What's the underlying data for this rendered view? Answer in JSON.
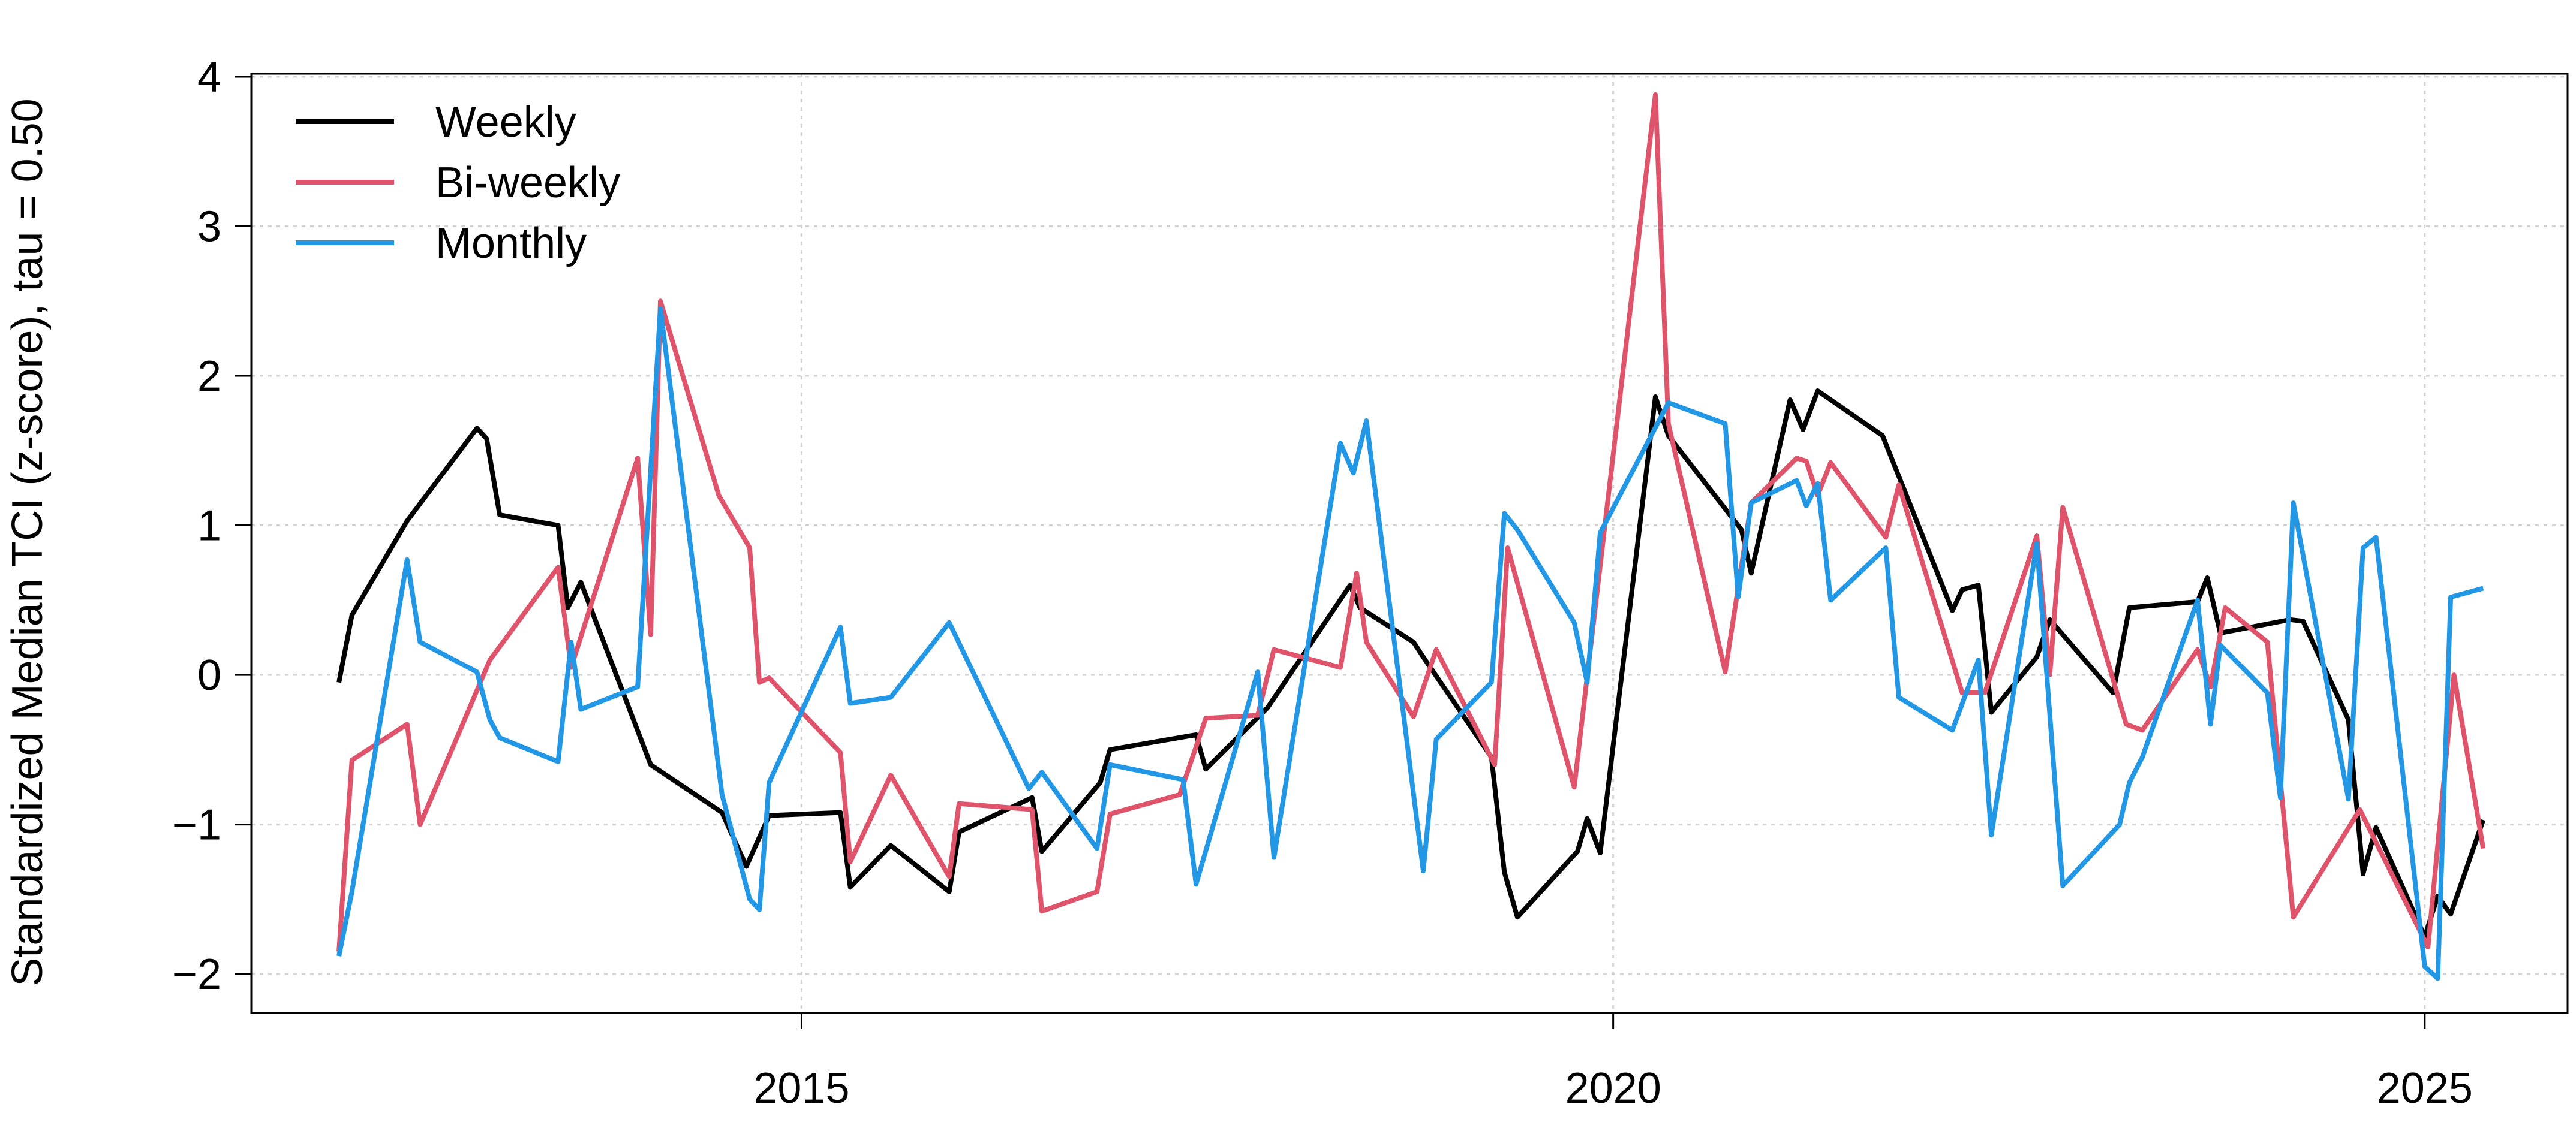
{
  "chart_data": {
    "type": "line",
    "ylabel": "Standardized Median TCI (z-score), tau = 0.50",
    "xlim": [
      2011.61,
      2025.88
    ],
    "ylim": [
      -2.26,
      4.02
    ],
    "xticks": [
      2015,
      2020,
      2025
    ],
    "yticks": [
      {
        "value": -2,
        "label": "−2"
      },
      {
        "value": -1,
        "label": "−1"
      },
      0,
      1,
      2,
      3,
      4
    ],
    "grid": true,
    "legend": "top-left",
    "series": [
      {
        "name": "Weekly",
        "color": "#000000",
        "x": [
          2012.15,
          2012.23,
          2012.57,
          2013.0,
          2013.06,
          2013.14,
          2013.5,
          2013.56,
          2013.64,
          2014.07,
          2014.51,
          2014.66,
          2014.8,
          2015.24,
          2015.3,
          2015.55,
          2015.91,
          2015.97,
          2016.42,
          2016.48,
          2016.84,
          2016.9,
          2017.43,
          2017.49,
          2017.87,
          2018.38,
          2018.44,
          2018.77,
          2018.83,
          2019.25,
          2019.33,
          2019.41,
          2019.78,
          2019.84,
          2019.92,
          2020.26,
          2020.34,
          2020.79,
          2020.85,
          2021.09,
          2021.17,
          2021.26,
          2021.66,
          2022.09,
          2022.15,
          2022.25,
          2022.33,
          2022.61,
          2022.69,
          2023.08,
          2023.18,
          2023.6,
          2023.66,
          2023.74,
          2024.17,
          2024.25,
          2024.53,
          2024.62,
          2024.7,
          2025.0,
          2025.08,
          2025.16,
          2025.36
        ],
        "values": [
          -0.05,
          0.4,
          1.03,
          1.65,
          1.58,
          1.07,
          1.0,
          0.45,
          0.62,
          -0.6,
          -0.92,
          -1.28,
          -0.94,
          -0.92,
          -1.42,
          -1.14,
          -1.45,
          -1.05,
          -0.82,
          -1.18,
          -0.72,
          -0.5,
          -0.4,
          -0.63,
          -0.22,
          0.6,
          0.45,
          0.22,
          0.12,
          -0.55,
          -1.32,
          -1.62,
          -1.18,
          -0.96,
          -1.19,
          1.86,
          1.6,
          0.97,
          0.68,
          1.84,
          1.64,
          1.9,
          1.6,
          0.43,
          0.57,
          0.6,
          -0.25,
          0.12,
          0.37,
          -0.12,
          0.45,
          0.49,
          0.65,
          0.28,
          0.37,
          0.36,
          -0.3,
          -1.33,
          -1.02,
          -1.75,
          -1.48,
          -1.6,
          -0.97
        ]
      },
      {
        "name": "Bi-weekly",
        "color": "#df536b",
        "x": [
          2012.15,
          2012.23,
          2012.57,
          2012.65,
          2013.08,
          2013.5,
          2013.58,
          2013.99,
          2014.07,
          2014.13,
          2014.49,
          2014.68,
          2014.74,
          2014.8,
          2015.24,
          2015.3,
          2015.55,
          2015.91,
          2015.97,
          2016.42,
          2016.48,
          2016.82,
          2016.9,
          2017.33,
          2017.49,
          2017.81,
          2017.91,
          2018.32,
          2018.42,
          2018.48,
          2018.77,
          2018.91,
          2019.27,
          2019.35,
          2019.76,
          2020.26,
          2020.34,
          2020.69,
          2020.85,
          2021.13,
          2021.19,
          2021.26,
          2021.34,
          2021.68,
          2021.76,
          2022.15,
          2022.29,
          2022.61,
          2022.69,
          2022.77,
          2023.16,
          2023.26,
          2023.6,
          2023.68,
          2023.77,
          2024.03,
          2024.19,
          2024.6,
          2025.02,
          2025.18,
          2025.36
        ],
        "values": [
          -1.85,
          -0.57,
          -0.33,
          -1.0,
          0.1,
          0.72,
          0.05,
          1.45,
          0.27,
          2.5,
          1.2,
          0.85,
          -0.05,
          -0.02,
          -0.52,
          -1.25,
          -0.67,
          -1.35,
          -0.86,
          -0.9,
          -1.58,
          -1.45,
          -0.93,
          -0.8,
          -0.29,
          -0.27,
          0.17,
          0.05,
          0.68,
          0.22,
          -0.28,
          0.17,
          -0.6,
          0.85,
          -0.75,
          3.88,
          1.68,
          0.02,
          1.15,
          1.45,
          1.43,
          1.2,
          1.42,
          0.92,
          1.27,
          -0.12,
          -0.12,
          0.93,
          0.0,
          1.12,
          -0.33,
          -0.37,
          0.17,
          -0.08,
          0.45,
          0.22,
          -1.62,
          -0.9,
          -1.82,
          0.0,
          -1.16
        ]
      },
      {
        "name": "Monthly",
        "color": "#2297e6",
        "x": [
          2012.15,
          2012.23,
          2012.57,
          2012.65,
          2013.0,
          2013.08,
          2013.14,
          2013.5,
          2013.58,
          2013.64,
          2013.99,
          2014.13,
          2014.51,
          2014.68,
          2014.74,
          2014.8,
          2015.24,
          2015.3,
          2015.55,
          2015.91,
          2016.4,
          2016.48,
          2016.82,
          2016.9,
          2017.35,
          2017.43,
          2017.81,
          2017.91,
          2018.32,
          2018.4,
          2018.48,
          2018.83,
          2018.91,
          2019.25,
          2019.33,
          2019.41,
          2019.76,
          2019.84,
          2019.92,
          2020.34,
          2020.69,
          2020.77,
          2020.85,
          2021.13,
          2021.19,
          2021.26,
          2021.34,
          2021.68,
          2021.76,
          2022.09,
          2022.25,
          2022.33,
          2022.61,
          2022.77,
          2023.12,
          2023.18,
          2023.26,
          2023.6,
          2023.68,
          2023.74,
          2024.03,
          2024.11,
          2024.19,
          2024.53,
          2024.62,
          2024.7,
          2025.0,
          2025.08,
          2025.16,
          2025.36
        ],
        "values": [
          -1.88,
          -1.45,
          0.77,
          0.22,
          0.02,
          -0.3,
          -0.42,
          -0.58,
          0.22,
          -0.23,
          -0.08,
          2.45,
          -0.8,
          -1.5,
          -1.57,
          -0.72,
          0.32,
          -0.19,
          -0.15,
          0.35,
          -0.76,
          -0.65,
          -1.16,
          -0.6,
          -0.7,
          -1.4,
          0.02,
          -1.22,
          1.55,
          1.35,
          1.7,
          -1.31,
          -0.43,
          -0.05,
          1.08,
          0.97,
          0.35,
          -0.05,
          0.95,
          1.82,
          1.68,
          0.52,
          1.15,
          1.3,
          1.13,
          1.28,
          0.5,
          0.85,
          -0.15,
          -0.37,
          0.1,
          -1.07,
          0.88,
          -1.41,
          -1.0,
          -0.72,
          -0.55,
          0.5,
          -0.33,
          0.2,
          -0.12,
          -0.82,
          1.15,
          -0.83,
          0.85,
          0.92,
          -1.95,
          -2.03,
          0.52,
          0.58
        ]
      }
    ]
  }
}
